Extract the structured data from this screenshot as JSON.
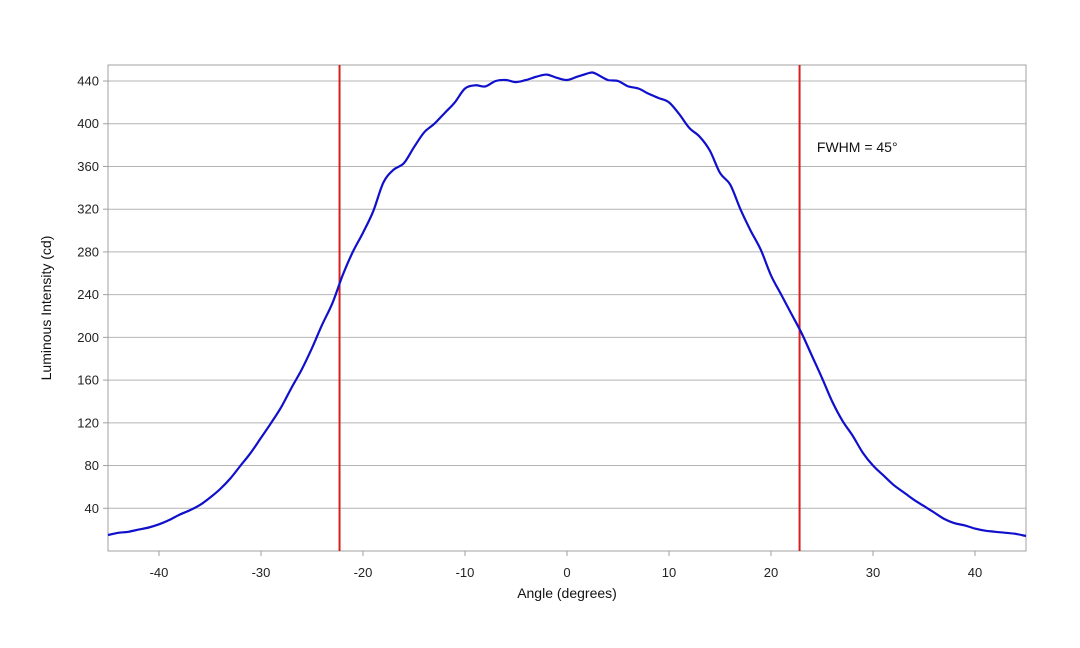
{
  "chart_data": {
    "type": "line",
    "xlabel": "Angle (degrees)",
    "ylabel": "Luminous Intensity (cd)",
    "xlim": [
      -45,
      45
    ],
    "ylim": [
      0,
      455
    ],
    "grid": true,
    "x_ticks": [
      -40,
      -30,
      -20,
      -10,
      0,
      10,
      20,
      30,
      40
    ],
    "y_ticks": [
      40,
      80,
      120,
      160,
      200,
      240,
      280,
      320,
      360,
      400,
      440
    ],
    "series": [
      {
        "color": "#1010cc",
        "x": [
          -45,
          -44,
          -43,
          -42,
          -41,
          -40,
          -39,
          -38,
          -37,
          -36,
          -35,
          -34,
          -33,
          -32,
          -31,
          -30,
          -29,
          -28,
          -27,
          -26,
          -25,
          -24,
          -23,
          -22,
          -21,
          -20,
          -19,
          -18,
          -17,
          -16,
          -15,
          -14,
          -13,
          -12,
          -11,
          -10,
          -9,
          -8,
          -7,
          -6,
          -5,
          -4,
          -3,
          -2,
          -1,
          0,
          1,
          2,
          2.5,
          3,
          4,
          5,
          6,
          7,
          8,
          9,
          10,
          11,
          12,
          13,
          14,
          15,
          16,
          17,
          18,
          19,
          20,
          21,
          22,
          23,
          24,
          25,
          26,
          27,
          28,
          29,
          30,
          31,
          32,
          33,
          34,
          35,
          36,
          37,
          38,
          39,
          40,
          41,
          42,
          43,
          44,
          45
        ],
        "y": [
          15,
          17,
          18,
          20,
          22,
          25,
          29,
          34,
          38,
          43,
          50,
          58,
          68,
          80,
          92,
          106,
          120,
          135,
          153,
          170,
          190,
          212,
          232,
          258,
          280,
          298,
          318,
          345,
          357,
          363,
          378,
          392,
          400,
          410,
          420,
          433,
          436,
          435,
          440,
          441,
          439,
          441,
          444,
          446,
          443,
          441,
          444,
          447,
          448,
          446,
          441,
          440,
          435,
          433,
          428,
          424,
          420,
          409,
          396,
          388,
          375,
          354,
          343,
          320,
          300,
          282,
          258,
          240,
          222,
          204,
          183,
          162,
          140,
          122,
          108,
          92,
          80,
          71,
          62,
          55,
          48,
          42,
          36,
          30,
          26,
          24,
          21,
          19,
          18,
          17,
          16,
          14
        ]
      }
    ],
    "markers": [
      {
        "x": -22.3,
        "color": "#d61f1f"
      },
      {
        "x": 22.8,
        "color": "#d61f1f"
      }
    ],
    "annotations": [
      {
        "text": "FWHM = 45°",
        "x": 24.5,
        "y": 378
      }
    ]
  }
}
